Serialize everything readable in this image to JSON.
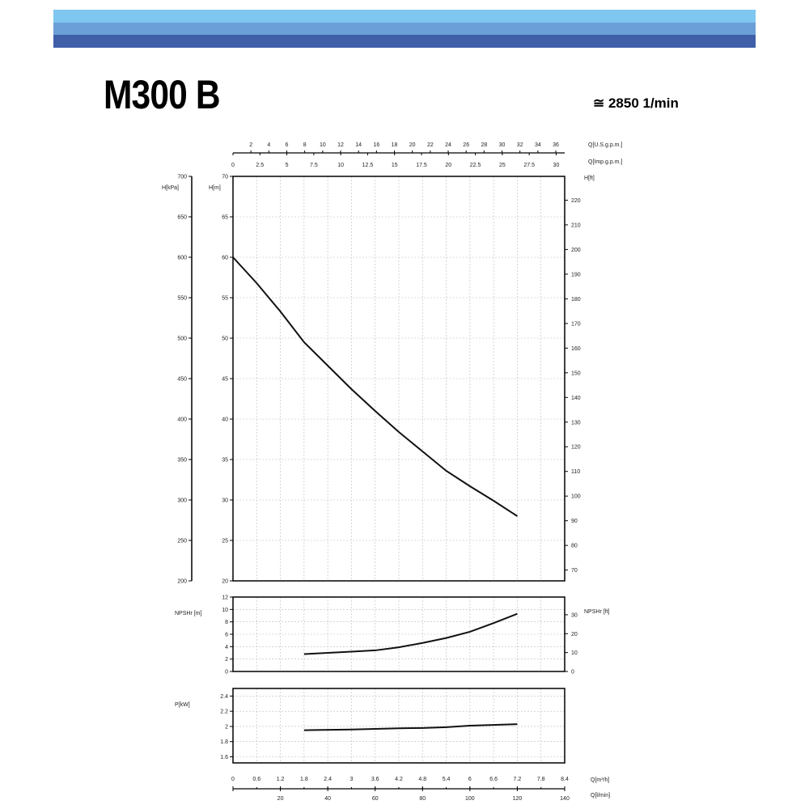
{
  "header": {
    "title": "M300 B",
    "speed": "≅ 2850 1/min",
    "band_colors": [
      "#7fc6f0",
      "#6a9fd8",
      "#3f5fa8"
    ]
  },
  "chart_data": [
    {
      "type": "line",
      "name_label": "H",
      "xlabel": "Q[m³/h]",
      "x_range": [
        0,
        8.4
      ],
      "ylabel_left": "H[m]",
      "ylim": [
        20,
        70
      ],
      "yticks": [
        20,
        25,
        30,
        35,
        40,
        45,
        50,
        55,
        60,
        65,
        70
      ],
      "ylabel_kpa": "H[kPa]",
      "kpa_ticks": [
        200,
        250,
        300,
        350,
        400,
        450,
        500,
        550,
        600,
        650,
        700
      ],
      "ylabel_right": "H[ft]",
      "ft_ticks": [
        70,
        80,
        90,
        100,
        110,
        120,
        130,
        140,
        150,
        160,
        170,
        180,
        190,
        200,
        210,
        220
      ],
      "series": [
        {
          "x": [
            0,
            0.6,
            1.2,
            1.8,
            2.4,
            3,
            3.6,
            4.2,
            4.8,
            5.4,
            6,
            6.6,
            7.2
          ],
          "y": [
            60,
            56.8,
            53.3,
            49.5,
            46.6,
            43.7,
            41,
            38.4,
            36,
            33.6,
            31.7,
            29.9,
            28
          ]
        }
      ],
      "top_axis_us": {
        "label": "Q[U.S.g.p.m.]",
        "ticks": [
          2,
          4,
          6,
          8,
          10,
          12,
          14,
          16,
          18,
          20,
          22,
          24,
          26,
          28,
          30,
          32,
          34,
          36
        ]
      },
      "top_axis_imp": {
        "label": "Q[Imp.g.p.m.]",
        "ticks": [
          "0",
          "2.5",
          "5",
          "7.5",
          "10",
          "12.5",
          "15",
          "17.5",
          "20",
          "22.5",
          "25",
          "27.5",
          "30"
        ]
      },
      "grid": true
    },
    {
      "type": "line",
      "ylabel_left": "NPSHr [m]",
      "ylim": [
        0,
        12
      ],
      "yticks": [
        0,
        2,
        4,
        6,
        8,
        10,
        12
      ],
      "ylabel_right": "NPSHr [ft]",
      "ft_ticks": [
        0,
        10,
        20,
        30
      ],
      "series": [
        {
          "x": [
            1.8,
            2.4,
            3,
            3.6,
            4.2,
            4.8,
            5.4,
            6,
            6.6,
            7.2
          ],
          "y": [
            2.8,
            3,
            3.2,
            3.4,
            3.9,
            4.6,
            5.4,
            6.4,
            7.8,
            9.3
          ]
        }
      ],
      "grid": true
    },
    {
      "type": "line",
      "ylabel_left": "P[kW]",
      "ylim": [
        1.52,
        2.5
      ],
      "yticks": [
        1.6,
        1.8,
        2,
        2.2,
        2.4
      ],
      "series": [
        {
          "x": [
            1.8,
            3,
            4.2,
            4.8,
            5.4,
            6,
            7.2
          ],
          "y": [
            1.95,
            1.96,
            1.975,
            1.98,
            1.99,
            2.01,
            2.03
          ]
        }
      ],
      "grid": true,
      "bottom_axis_m3h": {
        "label": "Q[m³/h]",
        "ticks": [
          "0",
          "0.6",
          "1.2",
          "1.8",
          "2.4",
          "3",
          "3.6",
          "4.2",
          "4.8",
          "5.4",
          "6",
          "6.6",
          "7.2",
          "7.8",
          "8.4"
        ]
      },
      "bottom_axis_lmin": {
        "label": "Q[l/min]",
        "ticks": [
          20,
          40,
          60,
          80,
          100,
          120,
          140
        ]
      }
    }
  ]
}
